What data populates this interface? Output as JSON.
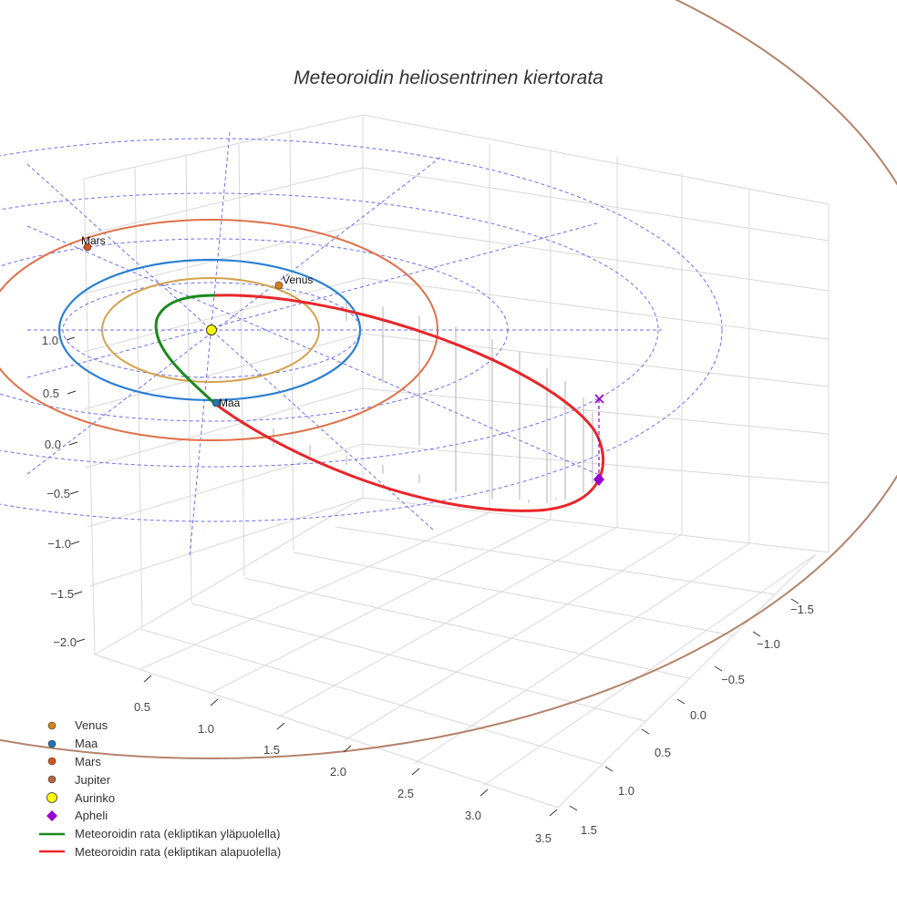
{
  "chart_data": {
    "type": "scatter3d",
    "title": "Meteoroidin heliosentrinen kiertorata",
    "x_ticks": [
      "0.5",
      "1.0",
      "1.5",
      "2.0",
      "2.5",
      "3.0",
      "3.5"
    ],
    "y_ticks": [
      "−1.5",
      "−1.0",
      "−0.5",
      "0.0",
      "0.5",
      "1.0",
      "1.5"
    ],
    "z_ticks": [
      "1.0",
      "0.5",
      "0.0",
      "−0.5",
      "−1.0",
      "−1.5",
      "−2.0"
    ],
    "planet_labels": [
      "Mars",
      "Venus",
      "Maa"
    ],
    "orbits_au": {
      "Venus": 0.723,
      "Maa": 1.0,
      "Mars": 1.524,
      "Jupiter": 5.2
    },
    "legend": [
      {
        "label": "Venus",
        "symbol": "dot",
        "color": "#d4821e"
      },
      {
        "label": "Maa",
        "symbol": "dot",
        "color": "#1f77b4"
      },
      {
        "label": "Mars",
        "symbol": "dot",
        "color": "#d9541e"
      },
      {
        "label": "Jupiter",
        "symbol": "dot",
        "color": "#b5653a"
      },
      {
        "label": "Aurinko",
        "symbol": "sun",
        "color": "#ffff00"
      },
      {
        "label": "Apheli",
        "symbol": "diamond",
        "color": "#9400d3"
      },
      {
        "label": "Meteoroidin rata (ekliptikan yläpuolella)",
        "symbol": "line",
        "color": "#1a8a1a"
      },
      {
        "label": "Meteoroidin rata (ekliptikan alapuolella)",
        "symbol": "line",
        "color": "#e8262a"
      }
    ]
  },
  "colors": {
    "venus_orbit": "#d4a24c",
    "earth_orbit": "#2b7fd4",
    "mars_orbit": "#e0704a",
    "jupiter_orbit": "#b4826a",
    "grid": "#d8d8d8",
    "ref": "#5555ee",
    "green": "#1a8a1a",
    "red": "#e8262a",
    "aphelion": "#9400d3"
  }
}
